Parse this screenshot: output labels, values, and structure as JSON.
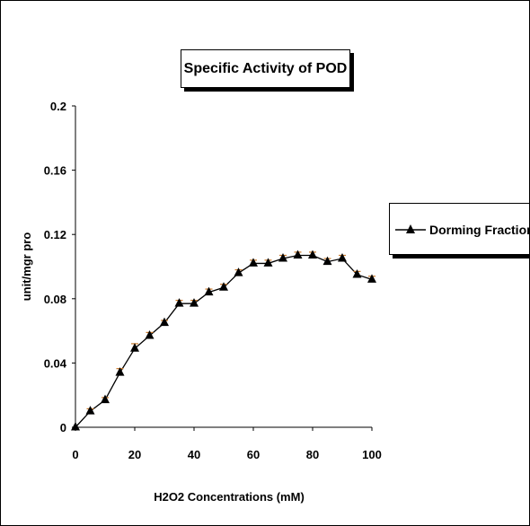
{
  "chart_data": {
    "type": "line",
    "title": "Specific Activity of POD",
    "xlabel": "H2O2 Concentrations (mM)",
    "ylabel": "unit/mgr pro",
    "xlim": [
      0,
      100
    ],
    "ylim": [
      0,
      0.2
    ],
    "x_ticks": [
      "0",
      "20",
      "40",
      "60",
      "80",
      "100"
    ],
    "y_ticks": [
      "0",
      "0.04",
      "0.08",
      "0.12",
      "0.16",
      "0.2"
    ],
    "legend_position": "right",
    "grid": false,
    "series": [
      {
        "name": "Dorming Fractions",
        "marker": "triangle",
        "color": "#000000",
        "error_bar_color": "#c8782a",
        "x": [
          0,
          5,
          10,
          15,
          20,
          25,
          30,
          35,
          40,
          45,
          50,
          55,
          60,
          65,
          70,
          75,
          80,
          85,
          90,
          95,
          100
        ],
        "y": [
          0,
          0.01,
          0.017,
          0.034,
          0.049,
          0.057,
          0.065,
          0.077,
          0.077,
          0.084,
          0.087,
          0.096,
          0.102,
          0.102,
          0.105,
          0.107,
          0.107,
          0.103,
          0.105,
          0.095,
          0.092
        ],
        "error": [
          0,
          0.0015,
          0.0015,
          0.0025,
          0.003,
          0.002,
          0.0015,
          0.002,
          0.002,
          0.002,
          0.002,
          0.002,
          0.002,
          0.002,
          0.002,
          0.002,
          0.002,
          0.002,
          0.002,
          0.002,
          0.002
        ]
      }
    ]
  }
}
